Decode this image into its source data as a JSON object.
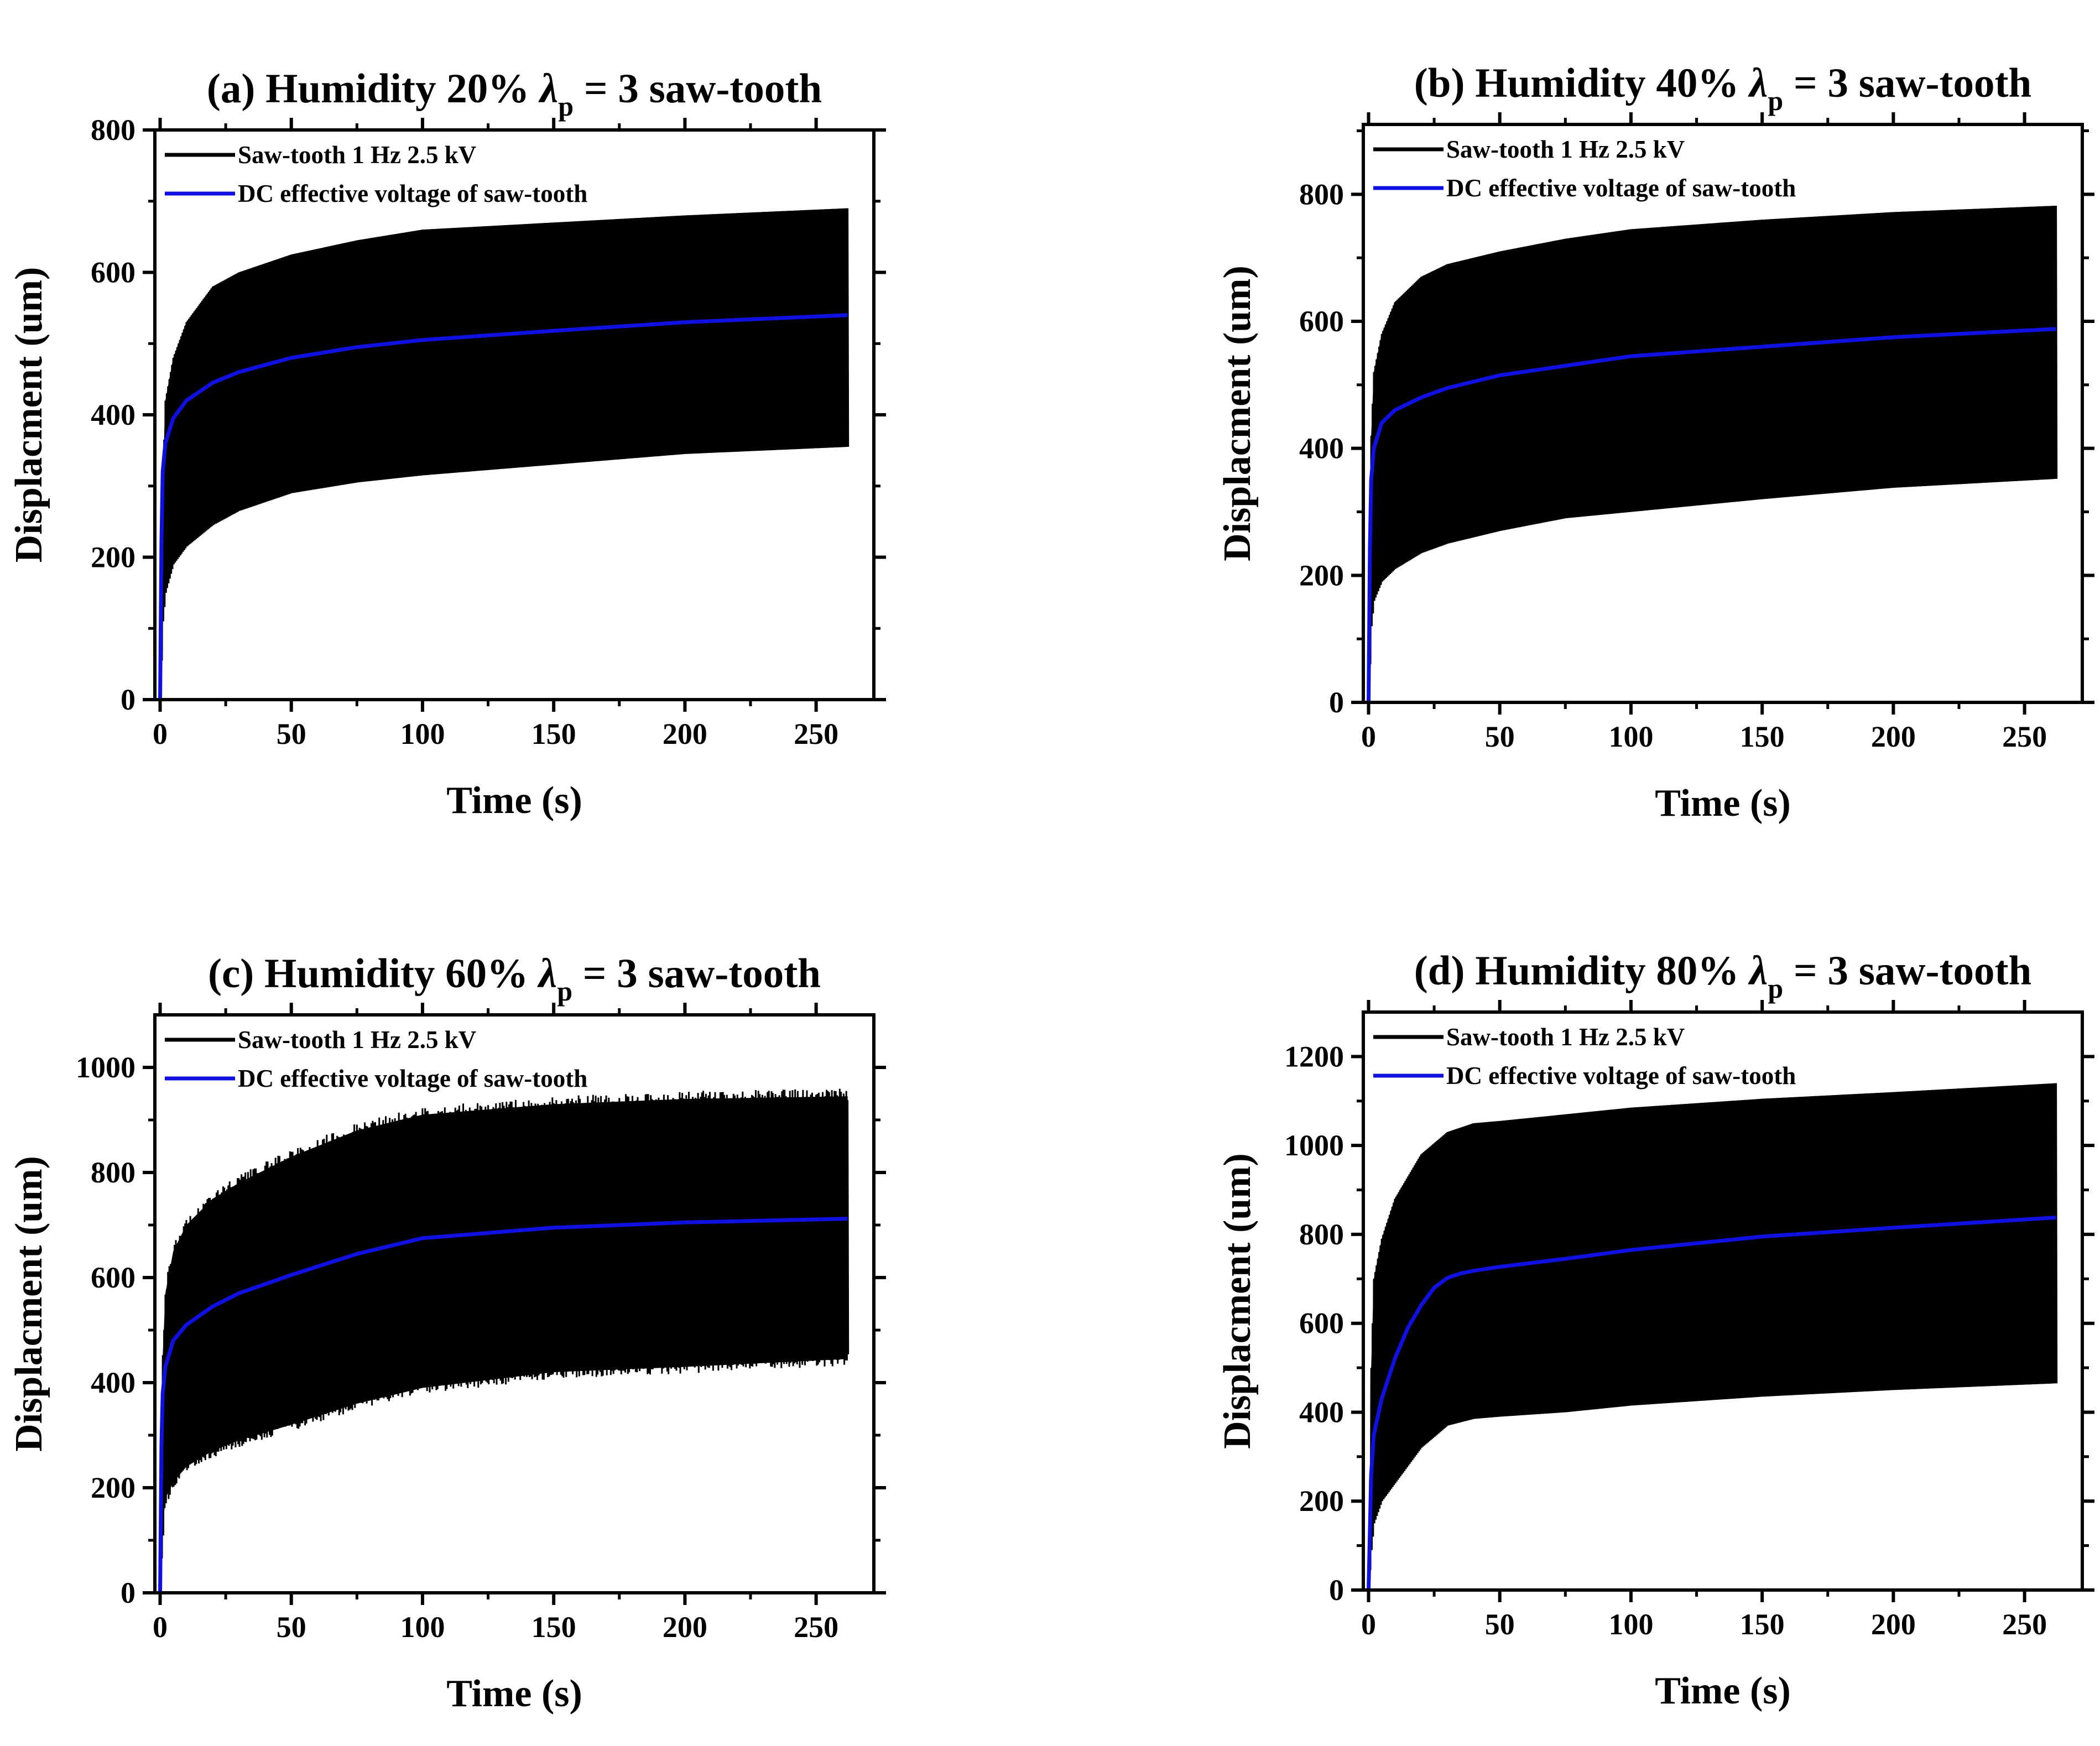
{
  "chart_data": [
    {
      "type": "line",
      "panel": "(a)",
      "title": "(a) Humidity 20%  λp = 3  saw-tooth",
      "title_parts": {
        "prefix": "(a) Humidity 20%  ",
        "symbol": "λ",
        "subscript": "p",
        "suffix": " = 3  saw-tooth"
      },
      "xlabel": "Time (s)",
      "ylabel": "Displacment (um)",
      "xlim": [
        -2,
        272
      ],
      "ylim": [
        0,
        800
      ],
      "xticks": [
        0,
        50,
        100,
        150,
        200,
        250
      ],
      "yticks": [
        0,
        200,
        400,
        600,
        800
      ],
      "legend": "top-left",
      "grid": false,
      "series": [
        {
          "name": "Saw-tooth 1 Hz 2.5 kV",
          "color": "#000000",
          "render": "dense-oscillation-band",
          "x": [
            0,
            1,
            2,
            5,
            10,
            20,
            30,
            50,
            75,
            100,
            150,
            200,
            262
          ],
          "upper": [
            0,
            310,
            420,
            480,
            530,
            580,
            600,
            625,
            645,
            660,
            670,
            680,
            690
          ],
          "lower": [
            0,
            110,
            150,
            190,
            215,
            245,
            265,
            290,
            305,
            315,
            330,
            345,
            355
          ]
        },
        {
          "name": "DC effective voltage of saw-tooth",
          "color": "#1010e0",
          "x": [
            0,
            0.5,
            1,
            2,
            5,
            10,
            20,
            30,
            50,
            75,
            100,
            150,
            200,
            262
          ],
          "y": [
            0,
            220,
            320,
            360,
            395,
            420,
            445,
            460,
            480,
            495,
            505,
            518,
            530,
            540
          ]
        }
      ]
    },
    {
      "type": "line",
      "panel": "(b)",
      "title": "(b) Humidity 40%  λp = 3  saw-tooth",
      "title_parts": {
        "prefix": "(b) Humidity 40%  ",
        "symbol": "λ",
        "subscript": "p",
        "suffix": " = 3  saw-tooth"
      },
      "xlabel": "Time (s)",
      "ylabel": "Displacment (um)",
      "xlim": [
        -2,
        272
      ],
      "ylim": [
        0,
        910
      ],
      "xticks": [
        0,
        50,
        100,
        150,
        200,
        250
      ],
      "yticks": [
        0,
        200,
        400,
        600,
        800
      ],
      "legend": "top-left",
      "grid": false,
      "series": [
        {
          "name": "Saw-tooth 1 Hz 2.5 kV",
          "color": "#000000",
          "render": "dense-oscillation-band",
          "x": [
            0,
            1,
            2,
            5,
            10,
            20,
            30,
            50,
            75,
            100,
            150,
            200,
            262
          ],
          "upper": [
            0,
            420,
            520,
            580,
            630,
            670,
            690,
            710,
            730,
            745,
            760,
            772,
            782
          ],
          "lower": [
            0,
            120,
            160,
            190,
            210,
            235,
            250,
            270,
            290,
            300,
            320,
            338,
            352
          ]
        },
        {
          "name": "DC effective voltage of saw-tooth",
          "color": "#1010e0",
          "x": [
            0,
            0.5,
            1,
            2,
            5,
            10,
            20,
            30,
            50,
            75,
            100,
            150,
            200,
            262
          ],
          "y": [
            0,
            240,
            350,
            400,
            440,
            460,
            480,
            495,
            515,
            530,
            545,
            560,
            575,
            588
          ]
        }
      ]
    },
    {
      "type": "line",
      "panel": "(c)",
      "title": "(c) Humidity 60%  λp = 3  saw-tooth",
      "title_parts": {
        "prefix": "(c) Humidity 60%  ",
        "symbol": "λ",
        "subscript": "p",
        "suffix": " = 3  saw-tooth"
      },
      "xlabel": "Time (s)",
      "ylabel": "Displacment (um)",
      "xlim": [
        -2,
        272
      ],
      "ylim": [
        0,
        1100
      ],
      "xticks": [
        0,
        50,
        100,
        150,
        200,
        250
      ],
      "yticks": [
        0,
        200,
        400,
        600,
        800,
        1000
      ],
      "legend": "top-left",
      "grid": false,
      "series": [
        {
          "name": "Saw-tooth 1 Hz 2.5 kV",
          "color": "#000000",
          "render": "dense-oscillation-band",
          "noisy": true,
          "x": [
            0,
            1,
            2,
            5,
            10,
            20,
            30,
            50,
            75,
            100,
            150,
            200,
            262
          ],
          "upper": [
            0,
            450,
            570,
            650,
            700,
            750,
            780,
            830,
            880,
            910,
            930,
            940,
            945
          ],
          "lower": [
            0,
            120,
            180,
            210,
            240,
            270,
            290,
            320,
            360,
            390,
            420,
            430,
            445
          ]
        },
        {
          "name": "DC effective voltage of saw-tooth",
          "color": "#1010e0",
          "x": [
            0,
            0.5,
            1,
            2,
            5,
            10,
            20,
            30,
            50,
            75,
            100,
            150,
            200,
            262
          ],
          "y": [
            0,
            280,
            380,
            430,
            480,
            510,
            545,
            570,
            605,
            645,
            675,
            695,
            705,
            712
          ]
        }
      ]
    },
    {
      "type": "line",
      "panel": "(d)",
      "title": "(d) Humidity 80%  λp = 3  saw-tooth",
      "title_parts": {
        "prefix": "(d) Humidity 80%  ",
        "symbol": "λ",
        "subscript": "p",
        "suffix": " = 3  saw-tooth"
      },
      "xlabel": "Time (s)",
      "ylabel": "Displacment (um)",
      "xlim": [
        -2,
        272
      ],
      "ylim": [
        0,
        1300
      ],
      "xticks": [
        0,
        50,
        100,
        150,
        200,
        250
      ],
      "yticks": [
        0,
        200,
        400,
        600,
        800,
        1000,
        1200
      ],
      "legend": "top-left",
      "grid": false,
      "series": [
        {
          "name": "Saw-tooth 1 Hz 2.5 kV",
          "color": "#000000",
          "render": "dense-oscillation-band",
          "x": [
            0,
            1,
            2,
            5,
            10,
            20,
            30,
            40,
            50,
            75,
            100,
            150,
            200,
            262
          ],
          "upper": [
            0,
            500,
            700,
            790,
            880,
            980,
            1030,
            1050,
            1055,
            1070,
            1085,
            1105,
            1120,
            1140
          ],
          "lower": [
            0,
            90,
            150,
            200,
            240,
            320,
            370,
            385,
            390,
            400,
            415,
            435,
            450,
            465
          ]
        },
        {
          "name": "DC effective voltage of saw-tooth",
          "color": "#1010e0",
          "x": [
            0,
            1,
            2,
            5,
            10,
            15,
            20,
            25,
            30,
            35,
            40,
            50,
            75,
            100,
            150,
            200,
            262
          ],
          "y": [
            0,
            260,
            350,
            430,
            520,
            590,
            640,
            680,
            702,
            712,
            718,
            727,
            745,
            765,
            795,
            815,
            838
          ]
        }
      ]
    }
  ]
}
